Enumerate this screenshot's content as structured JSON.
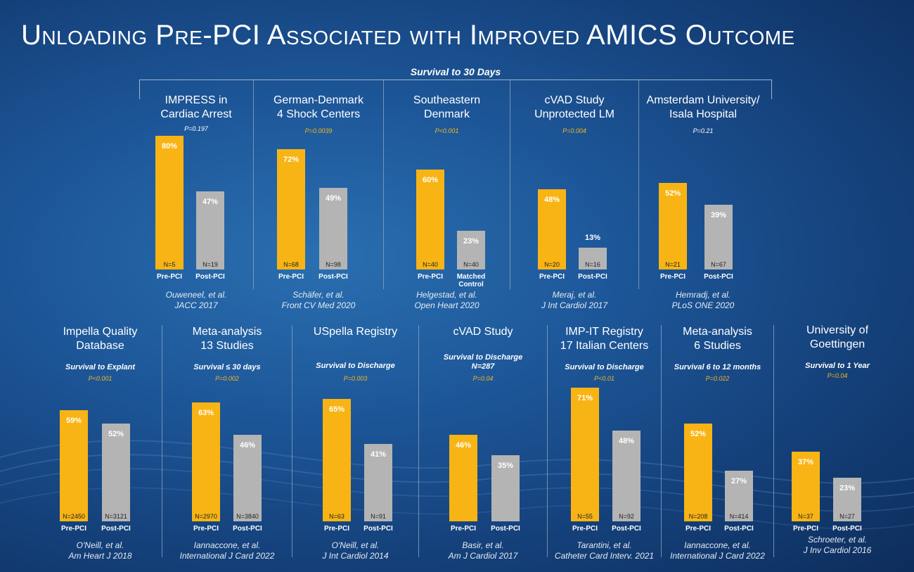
{
  "title": "Unloading Pre-PCI Associated with Improved AMICS Outcome",
  "top_label": "Survival to 30 Days",
  "chart_data": [
    {
      "type": "bar",
      "panel": "top",
      "title": "IMPRESS in\nCardiac Arrest",
      "subtitle": "",
      "pvalue": "P=0.197",
      "pvalue_color": "white",
      "categories": [
        "Pre-PCI",
        "Post-PCI"
      ],
      "values": [
        80,
        47
      ],
      "labels": [
        "80%",
        "47%"
      ],
      "n": [
        "N=5",
        "N=19"
      ],
      "citation": "Ouweneel, et al.\nJACC 2017",
      "unit": "%"
    },
    {
      "type": "bar",
      "panel": "top",
      "title": "German-Denmark\n4 Shock Centers",
      "subtitle": "",
      "pvalue": "P=0.0039",
      "pvalue_color": "#f5b71a",
      "categories": [
        "Pre-PCI",
        "Post-PCI"
      ],
      "values": [
        72,
        49
      ],
      "labels": [
        "72%",
        "49%"
      ],
      "n": [
        "N=68",
        "N=98"
      ],
      "citation": "Schäfer, et al.\nFront CV Med 2020",
      "unit": "%"
    },
    {
      "type": "bar",
      "panel": "top",
      "title": "Southeastern\nDenmark",
      "subtitle": "",
      "pvalue": "P<0.001",
      "pvalue_color": "#f5b71a",
      "categories": [
        "Pre-PCI",
        "Matched\nControl"
      ],
      "values": [
        60,
        23
      ],
      "labels": [
        "60%",
        "23%"
      ],
      "n": [
        "N=40",
        "N=40"
      ],
      "citation": "Helgestad, et al.\nOpen Heart 2020",
      "unit": "%"
    },
    {
      "type": "bar",
      "panel": "top",
      "title": "cVAD Study\nUnprotected LM",
      "subtitle": "",
      "pvalue": "P=0.004",
      "pvalue_color": "#f5b71a",
      "categories": [
        "Pre-PCI",
        "Post-PCI"
      ],
      "values": [
        48,
        13
      ],
      "labels": [
        "48%",
        "13%"
      ],
      "n": [
        "N=20",
        "N=16"
      ],
      "citation": "Meraj, et al.\nJ Int Cardiol 2017",
      "unit": "%"
    },
    {
      "type": "bar",
      "panel": "top",
      "title": "Amsterdam University/\nIsala Hospital",
      "subtitle": "",
      "pvalue": "P=0.21",
      "pvalue_color": "white",
      "categories": [
        "Pre-PCI",
        "Post-PCI"
      ],
      "values": [
        52,
        39
      ],
      "labels": [
        "52%",
        "39%"
      ],
      "n": [
        "N=21",
        "N=67"
      ],
      "citation": "Hemradj, et al.\nPLoS ONE 2020",
      "unit": "%"
    },
    {
      "type": "bar",
      "panel": "bottom",
      "title": "Impella Quality\nDatabase",
      "subtitle": "Survival to Explant",
      "pvalue": "P<0.001",
      "pvalue_color": "#f5b71a",
      "categories": [
        "Pre-PCI",
        "Post-PCI"
      ],
      "values": [
        59,
        52
      ],
      "labels": [
        "59%",
        "52%"
      ],
      "n": [
        "N=2450",
        "N=3121"
      ],
      "citation": "O'Neill, et al.\nAm Heart J 2018",
      "unit": "%"
    },
    {
      "type": "bar",
      "panel": "bottom",
      "title": "Meta-analysis\n13 Studies",
      "subtitle": "Survival ≤ 30 days",
      "pvalue": "P=0.002",
      "pvalue_color": "#f5b71a",
      "categories": [
        "Pre-PCI",
        "Post-PCI"
      ],
      "values": [
        63,
        46
      ],
      "labels": [
        "63%",
        "46%"
      ],
      "n": [
        "N=2970",
        "N=3840"
      ],
      "citation": "Iannaccone, et al.\nInternational J  Card 2022",
      "unit": "%"
    },
    {
      "type": "bar",
      "panel": "bottom",
      "title": "USpella Registry",
      "subtitle": "Survival to Discharge",
      "pvalue": "P=0.003",
      "pvalue_color": "#f5b71a",
      "categories": [
        "Pre-PCI",
        "Post-PCI"
      ],
      "values": [
        65,
        41
      ],
      "labels": [
        "65%",
        "41%"
      ],
      "n": [
        "N=63",
        "N=91"
      ],
      "citation": "O'Neill, et al.\nJ Int Cardiol 2014",
      "unit": "%"
    },
    {
      "type": "bar",
      "panel": "bottom",
      "title": "cVAD Study",
      "subtitle": "Survival to Discharge\nN=287",
      "pvalue": "P=0.04",
      "pvalue_color": "#f5b71a",
      "categories": [
        "Pre-PCI",
        "Post-PCI"
      ],
      "values": [
        46,
        35
      ],
      "labels": [
        "46%",
        "35%"
      ],
      "n": [
        "",
        ""
      ],
      "citation": "Basir, et al.\nAm J Cardiol 2017",
      "unit": "%"
    },
    {
      "type": "bar",
      "panel": "bottom",
      "title": "IMP-IT Registry\n17 Italian Centers",
      "subtitle": "Survival to Discharge",
      "pvalue": "P<0.01",
      "pvalue_color": "#f5b71a",
      "categories": [
        "Pre-PCI",
        "Post-PCI"
      ],
      "values": [
        71,
        48
      ],
      "labels": [
        "71%",
        "48%"
      ],
      "n": [
        "N=55",
        "N=92"
      ],
      "citation": "Tarantini, et al.\nCatheter Card Interv. 2021",
      "unit": "%"
    },
    {
      "type": "bar",
      "panel": "bottom",
      "title": "Meta-analysis\n6 Studies",
      "subtitle": "Survival 6 to 12 months",
      "pvalue": "P=0.022",
      "pvalue_color": "#f5b71a",
      "categories": [
        "Pre-PCI",
        "Post-PCI"
      ],
      "values": [
        52,
        27
      ],
      "labels": [
        "52%",
        "27%"
      ],
      "n": [
        "N=208",
        "N=414"
      ],
      "citation": "Iannaccone, et al.\nInternational J  Card 2022",
      "unit": "%"
    },
    {
      "type": "bar",
      "panel": "bottom",
      "title": "University of\nGoettingen",
      "subtitle": "Survival to 1 Year",
      "pvalue": "P=0.04",
      "pvalue_color": "#f5b71a",
      "categories": [
        "Pre-PCI",
        "Post-PCI"
      ],
      "values": [
        37,
        23
      ],
      "labels": [
        "37%",
        "23%"
      ],
      "n": [
        "N=37",
        "N=27"
      ],
      "citation": "Schroeter, et al.\nJ Inv Cardiol 2016",
      "unit": "%"
    }
  ],
  "colors": {
    "pre": "#f8b414",
    "post": "#b4b4b4",
    "pvalue": "#f5b71a"
  }
}
